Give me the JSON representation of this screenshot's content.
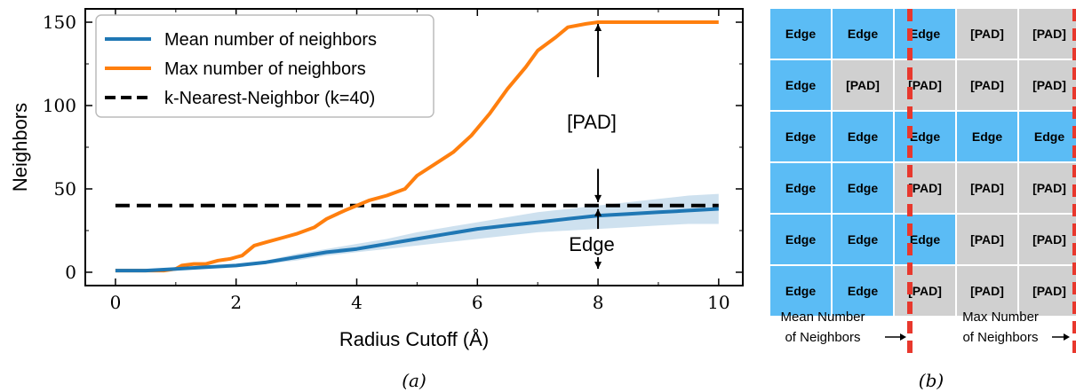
{
  "chart_data": [
    {
      "panel_label": "(a)",
      "type": "line",
      "xlabel": "Radius Cutoff (Å)",
      "ylabel": "Neighbors",
      "xlim": [
        -0.5,
        10.4
      ],
      "ylim": [
        -8,
        158
      ],
      "xticks": [
        "0",
        "2",
        "4",
        "6",
        "8",
        "10"
      ],
      "yticks": [
        "0",
        "50",
        "100",
        "150"
      ],
      "grid": false,
      "legend": "top-left",
      "annotations": {
        "pad": "[PAD]",
        "edge": "Edge"
      },
      "series": [
        {
          "name": "Mean number of neighbors",
          "color": "#1f77b4",
          "x": [
            0,
            0.5,
            1.0,
            1.5,
            2.0,
            2.5,
            3.0,
            3.5,
            4.0,
            4.5,
            5.0,
            5.5,
            6.0,
            6.5,
            7.0,
            7.5,
            8.0,
            8.5,
            9.0,
            9.5,
            10.0
          ],
          "values": [
            1,
            1,
            2,
            3,
            4,
            6,
            9,
            12,
            14,
            17,
            20,
            23,
            26,
            28,
            30,
            32,
            34,
            35,
            36,
            37,
            38
          ],
          "band_lower": [
            1,
            1,
            2,
            3,
            4,
            5,
            7,
            10,
            12,
            14,
            16,
            18,
            20,
            22,
            24,
            25,
            26,
            27,
            28,
            29,
            29
          ],
          "band_upper": [
            1,
            1,
            2,
            3,
            4,
            7,
            11,
            14,
            17,
            20,
            24,
            27,
            30,
            33,
            36,
            38,
            40,
            42,
            44,
            46,
            47
          ]
        },
        {
          "name": "Max number of neighbors",
          "color": "#ff7f0e",
          "x": [
            0,
            0.5,
            0.8,
            1.0,
            1.1,
            1.3,
            1.5,
            1.7,
            1.9,
            2.0,
            2.1,
            2.3,
            2.5,
            2.8,
            3.0,
            3.3,
            3.5,
            3.8,
            4.0,
            4.2,
            4.5,
            4.8,
            5.0,
            5.3,
            5.6,
            5.9,
            6.2,
            6.5,
            6.8,
            7.0,
            7.3,
            7.5,
            7.8,
            8.0,
            9.0,
            10.0
          ],
          "values": [
            1,
            1,
            1,
            2,
            4,
            5,
            5,
            7,
            8,
            9,
            10,
            16,
            18,
            21,
            23,
            27,
            32,
            37,
            40,
            43,
            46,
            50,
            58,
            65,
            72,
            82,
            95,
            110,
            123,
            133,
            141,
            147,
            149,
            150,
            150,
            150
          ]
        },
        {
          "name": "k-Nearest-Neighbor (k=40)",
          "color": "#000000",
          "style": "dashed",
          "x": [
            0,
            10
          ],
          "values": [
            40,
            40
          ]
        }
      ]
    },
    {
      "panel_label": "(b)",
      "type": "table",
      "rows": [
        [
          "Edge",
          "Edge",
          "Edge",
          "[PAD]",
          "[PAD]"
        ],
        [
          "Edge",
          "[PAD]",
          "[PAD]",
          "[PAD]",
          "[PAD]"
        ],
        [
          "Edge",
          "Edge",
          "Edge",
          "Edge",
          "Edge"
        ],
        [
          "Edge",
          "Edge",
          "[PAD]",
          "[PAD]",
          "[PAD]"
        ],
        [
          "Edge",
          "Edge",
          "Edge",
          "[PAD]",
          "[PAD]"
        ],
        [
          "Edge",
          "Edge",
          "[PAD]",
          "[PAD]",
          "[PAD]"
        ]
      ],
      "colors": {
        "Edge": "#5bbcf5",
        "[PAD]": "#d0d0d0",
        "cutoff": "#e8382d"
      },
      "footer": {
        "mean_line1": "Mean Number",
        "mean_line2": "of Neighbors",
        "max_line1": "Max Number",
        "max_line2": "of Neighbors"
      }
    }
  ]
}
